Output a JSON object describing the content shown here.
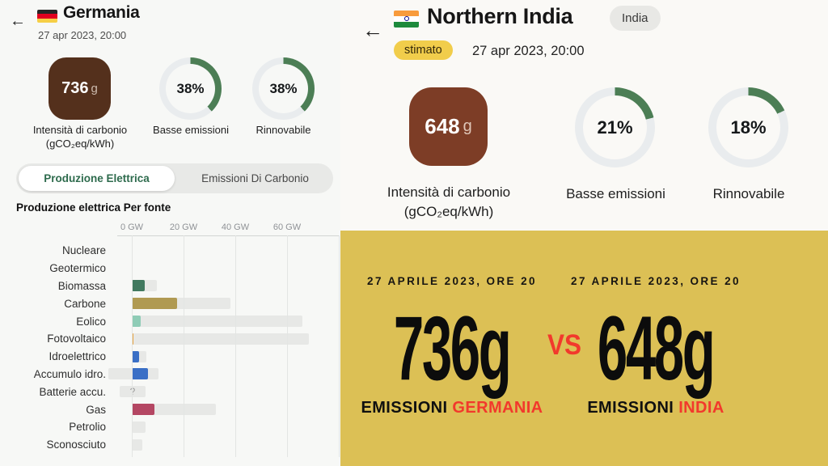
{
  "colors": {
    "gauge_green": "#4c7e55",
    "gauge_track": "#e9ecee",
    "carbon_left": "#54301c",
    "carbon_right": "#7d3d26",
    "comparison_bg": "#dcc055",
    "accent_red": "#f2392c",
    "tab_active_green": "#2e6b4d"
  },
  "left_panel": {
    "back_icon": "←",
    "flag": "germany-flag",
    "title": "Germania",
    "datetime": "27 apr 2023, 20:00",
    "carbon_intensity": {
      "value": "736",
      "unit": "g",
      "label_line1": "Intensità di carbonio",
      "label_line2": "(gCO₂eq/kWh)"
    },
    "gauges": [
      {
        "percent": 38,
        "text": "38%",
        "label": "Basse emissioni"
      },
      {
        "percent": 38,
        "text": "38%",
        "label": "Rinnovabile"
      }
    ],
    "tabs": [
      {
        "label": "Produzione Elettrica",
        "active": true
      },
      {
        "label": "Emissioni Di Carbonio",
        "active": false
      }
    ],
    "chart_heading": "Produzione elettrica Per fonte"
  },
  "right_panel": {
    "back_icon": "←",
    "flag": "india-flag",
    "title": "Northern India",
    "zone_badge": "India",
    "estimated_badge": "stimato",
    "datetime": "27 apr 2023, 20:00",
    "carbon_intensity": {
      "value": "648",
      "unit": "g",
      "label_line1": "Intensità di carbonio",
      "label_line2": "(gCO₂eq/kWh)"
    },
    "gauges": [
      {
        "percent": 21,
        "text": "21%",
        "label": "Basse emissioni"
      },
      {
        "percent": 18,
        "text": "18%",
        "label": "Rinnovabile"
      }
    ]
  },
  "chart_data": {
    "type": "bar",
    "orientation": "horizontal",
    "title": "Produzione elettrica Per fonte",
    "unit": "GW",
    "xlim": [
      -10,
      80
    ],
    "grid": true,
    "x_ticks": [
      {
        "value": 0,
        "label": "0 GW"
      },
      {
        "value": 20,
        "label": "20 GW"
      },
      {
        "value": 40,
        "label": "40 GW"
      },
      {
        "value": 60,
        "label": "60 GW"
      },
      {
        "value": 80,
        "label": ""
      }
    ],
    "rows": [
      {
        "label": "Nucleare",
        "value": 0,
        "capacity_from": 0,
        "capacity_to": 0,
        "color": null
      },
      {
        "label": "Geotermico",
        "value": 0,
        "capacity_from": 0,
        "capacity_to": 0,
        "color": null
      },
      {
        "label": "Biomassa",
        "value": 5,
        "capacity_from": 0,
        "capacity_to": 9.7,
        "color": "#41795f"
      },
      {
        "label": "Carbone",
        "value": 17.5,
        "capacity_from": 0,
        "capacity_to": 38,
        "color": "#b09a52"
      },
      {
        "label": "Eolico",
        "value": 3.4,
        "capacity_from": 0,
        "capacity_to": 66,
        "color": "#8fccb6"
      },
      {
        "label": "Fotovoltaico",
        "value": 0.5,
        "capacity_from": 0,
        "capacity_to": 68.5,
        "color": "#e9a43e"
      },
      {
        "label": "Idroelettrico",
        "value": 2.7,
        "capacity_from": 0,
        "capacity_to": 5.6,
        "color": "#3a6fc6"
      },
      {
        "label": "Accumulo idro.",
        "value": 6.2,
        "capacity_from": -9,
        "capacity_to": 10.2,
        "color": "#3a6fc6"
      },
      {
        "label": "Batterie accu.",
        "value": null,
        "unknown": true,
        "unknown_text": "?",
        "capacity_from": -4.7,
        "capacity_to": 5.3,
        "color": null
      },
      {
        "label": "Gas",
        "value": 8.8,
        "capacity_from": 0,
        "capacity_to": 32.5,
        "color": "#b44763"
      },
      {
        "label": "Petrolio",
        "value": 0,
        "capacity_from": 0,
        "capacity_to": 5.3,
        "color": null
      },
      {
        "label": "Sconosciuto",
        "value": 0,
        "capacity_from": 0,
        "capacity_to": 4,
        "color": null
      }
    ]
  },
  "comparison": {
    "vs": "VS",
    "left": {
      "date": "27 APRILE 2023, ORE 20",
      "value": "736g",
      "label_prefix": "EMISSIONI ",
      "label_country": "GERMANIA"
    },
    "right": {
      "date": "27 APRILE 2023, ORE 20",
      "value": "648g",
      "label_prefix": "EMISSIONI ",
      "label_country": "INDIA"
    }
  }
}
